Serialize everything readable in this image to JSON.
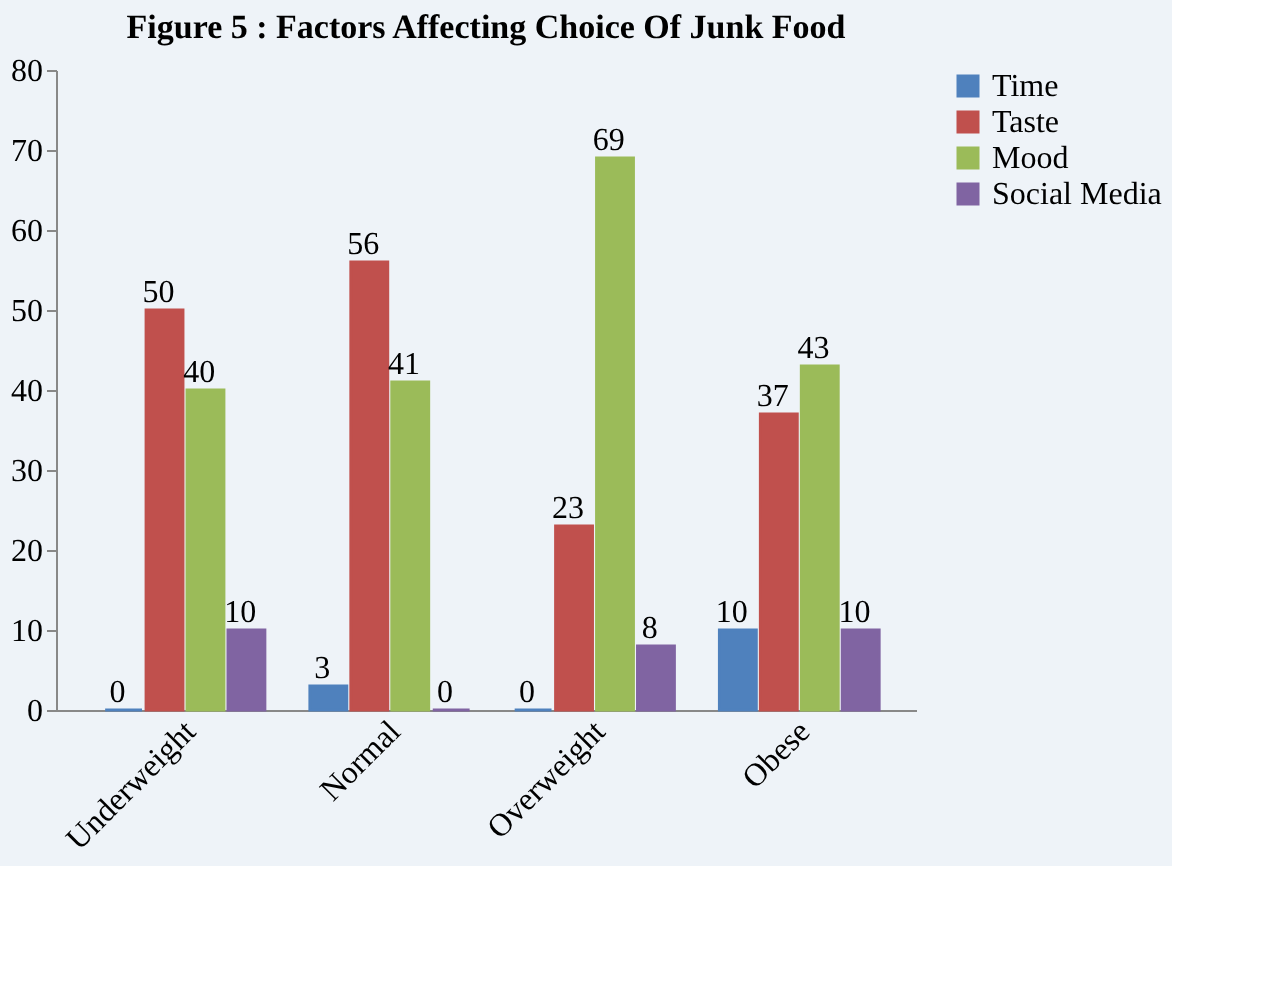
{
  "chart_data": {
    "type": "bar",
    "title": "Figure 5 : Factors Affecting Choice Of Junk Food",
    "categories": [
      "Underweight",
      "Normal",
      "Overweight",
      "Obese"
    ],
    "series": [
      {
        "name": "Time",
        "color": "#4f81bd",
        "values": [
          0,
          3,
          0,
          10
        ]
      },
      {
        "name": "Taste",
        "color": "#c0504d",
        "values": [
          50,
          56,
          23,
          37
        ]
      },
      {
        "name": "Mood",
        "color": "#9bbb59",
        "values": [
          40,
          41,
          69,
          43
        ]
      },
      {
        "name": "Social Media",
        "color": "#8064a2",
        "values": [
          10,
          0,
          8,
          10
        ]
      }
    ],
    "ylim": [
      0,
      80
    ],
    "yticks": [
      0,
      10,
      20,
      30,
      40,
      50,
      60,
      70,
      80
    ],
    "grid": false,
    "legend": "right",
    "data_labels": true
  }
}
